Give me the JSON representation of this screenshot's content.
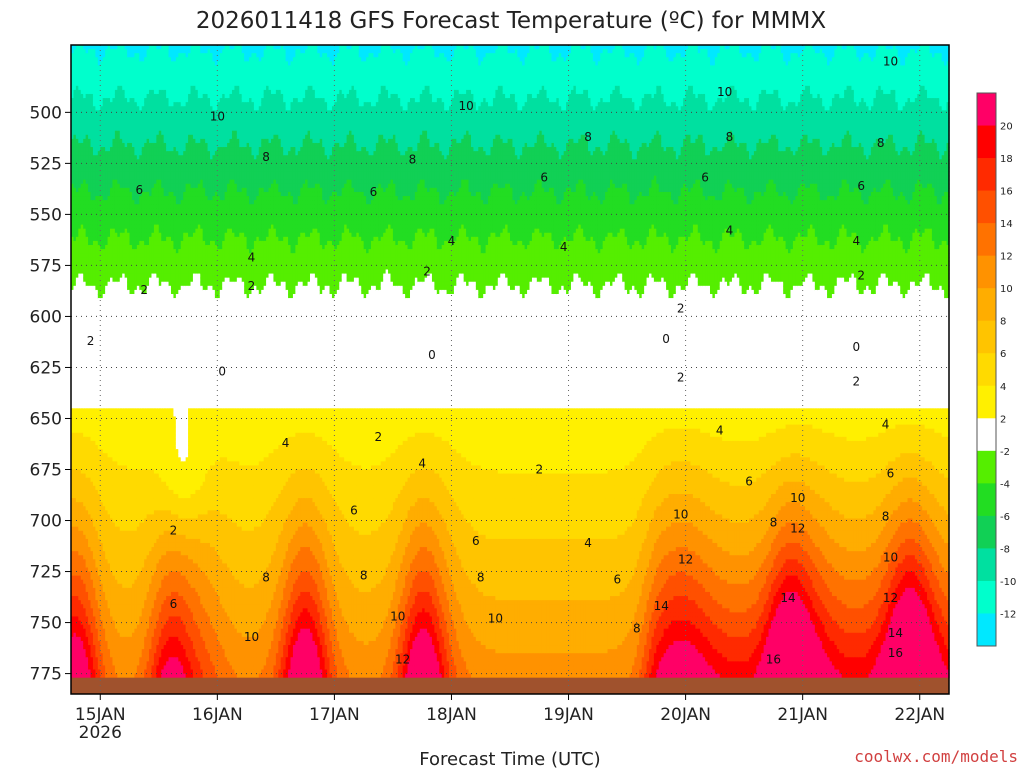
{
  "chart_data": {
    "type": "heatmap",
    "title": "2026011418 GFS Forecast Temperature (ºC) for MMMX",
    "xlabel": "Forecast Time (UTC)",
    "ylabel": "",
    "credit": "coolwx.com/models",
    "y_axis": {
      "unit": "hPa",
      "ylim": [
        785,
        467
      ],
      "ticks": [
        500,
        525,
        550,
        575,
        600,
        625,
        650,
        675,
        700,
        725,
        750,
        775
      ],
      "tick_labels": [
        "500",
        "525",
        "550",
        "575",
        "600",
        "625",
        "650",
        "675",
        "700",
        "725",
        "750",
        "775"
      ]
    },
    "x_axis": {
      "unit": "hours since 2026-01-14 18Z",
      "xlim": [
        0,
        180
      ],
      "ticks": [
        6,
        30,
        54,
        78,
        102,
        126,
        150,
        174
      ],
      "tick_labels": [
        "15JAN",
        "16JAN",
        "17JAN",
        "18JAN",
        "19JAN",
        "20JAN",
        "21JAN",
        "22JAN"
      ],
      "year_label": "2026"
    },
    "grid": true,
    "surface_pressure_hPa": 777,
    "contour_levels": [
      -12,
      -10,
      -8,
      -6,
      -4,
      -2,
      0,
      2,
      4,
      6,
      8,
      10,
      12,
      14,
      16,
      18,
      20
    ],
    "colorbar": {
      "tick_labels": [
        "20",
        "18",
        "16",
        "14",
        "12",
        "10",
        "8",
        "6",
        "4",
        "2",
        "-2",
        "-4",
        "-6",
        "-8",
        "-10",
        "-12"
      ],
      "bands": [
        {
          "lo": 20,
          "hi": 22,
          "color": "#ff0066"
        },
        {
          "lo": 18,
          "hi": 20,
          "color": "#ff0000"
        },
        {
          "lo": 16,
          "hi": 18,
          "color": "#ff2a00"
        },
        {
          "lo": 14,
          "hi": 16,
          "color": "#ff5000"
        },
        {
          "lo": 12,
          "hi": 14,
          "color": "#ff7200"
        },
        {
          "lo": 10,
          "hi": 12,
          "color": "#ff9200"
        },
        {
          "lo": 8,
          "hi": 10,
          "color": "#ffad00"
        },
        {
          "lo": 6,
          "hi": 8,
          "color": "#ffc400"
        },
        {
          "lo": 4,
          "hi": 6,
          "color": "#ffda00"
        },
        {
          "lo": 2,
          "hi": 4,
          "color": "#fff000"
        },
        {
          "lo": -2,
          "hi": 2,
          "color": "#ffffff"
        },
        {
          "lo": -4,
          "hi": -2,
          "color": "#55ee00"
        },
        {
          "lo": -6,
          "hi": -4,
          "color": "#22dd22"
        },
        {
          "lo": -8,
          "hi": -6,
          "color": "#11d055"
        },
        {
          "lo": -10,
          "hi": -8,
          "color": "#00e0a0"
        },
        {
          "lo": -12,
          "hi": -10,
          "color": "#00ffcc"
        },
        {
          "lo": -14,
          "hi": -12,
          "color": "#00e8ff"
        }
      ]
    },
    "contour_labels": [
      {
        "t": 4,
        "p": 612,
        "text": "2"
      },
      {
        "t": 15,
        "p": 587,
        "text": "2"
      },
      {
        "t": 37,
        "p": 585,
        "text": "2"
      },
      {
        "t": 73,
        "p": 578,
        "text": "2"
      },
      {
        "t": 125,
        "p": 596,
        "text": "2"
      },
      {
        "t": 162,
        "p": 580,
        "text": "2"
      },
      {
        "t": 14,
        "p": 538,
        "text": "6"
      },
      {
        "t": 37,
        "p": 571,
        "text": "4"
      },
      {
        "t": 78,
        "p": 563,
        "text": "4"
      },
      {
        "t": 101,
        "p": 566,
        "text": "4"
      },
      {
        "t": 135,
        "p": 558,
        "text": "4"
      },
      {
        "t": 161,
        "p": 563,
        "text": "4"
      },
      {
        "t": 40,
        "p": 522,
        "text": "8"
      },
      {
        "t": 62,
        "p": 539,
        "text": "6"
      },
      {
        "t": 70,
        "p": 523,
        "text": "8"
      },
      {
        "t": 97,
        "p": 532,
        "text": "6"
      },
      {
        "t": 130,
        "p": 532,
        "text": "6"
      },
      {
        "t": 162,
        "p": 536,
        "text": "6"
      },
      {
        "t": 30,
        "p": 502,
        "text": "10"
      },
      {
        "t": 81,
        "p": 497,
        "text": "10"
      },
      {
        "t": 106,
        "p": 512,
        "text": "8"
      },
      {
        "t": 135,
        "p": 512,
        "text": "8"
      },
      {
        "t": 134,
        "p": 490,
        "text": "10"
      },
      {
        "t": 166,
        "p": 515,
        "text": "8"
      },
      {
        "t": 168,
        "p": 475,
        "text": "10"
      },
      {
        "t": 31,
        "p": 627,
        "text": "0"
      },
      {
        "t": 74,
        "p": 619,
        "text": "0"
      },
      {
        "t": 122,
        "p": 611,
        "text": "0"
      },
      {
        "t": 161,
        "p": 615,
        "text": "0"
      },
      {
        "t": 21,
        "p": 705,
        "text": "2"
      },
      {
        "t": 63,
        "p": 659,
        "text": "2"
      },
      {
        "t": 96,
        "p": 675,
        "text": "2"
      },
      {
        "t": 125,
        "p": 630,
        "text": "2"
      },
      {
        "t": 161,
        "p": 632,
        "text": "2"
      },
      {
        "t": 44,
        "p": 662,
        "text": "4"
      },
      {
        "t": 72,
        "p": 672,
        "text": "4"
      },
      {
        "t": 106,
        "p": 711,
        "text": "4"
      },
      {
        "t": 133,
        "p": 656,
        "text": "4"
      },
      {
        "t": 167,
        "p": 653,
        "text": "4"
      },
      {
        "t": 21,
        "p": 741,
        "text": "6"
      },
      {
        "t": 58,
        "p": 695,
        "text": "6"
      },
      {
        "t": 83,
        "p": 710,
        "text": "6"
      },
      {
        "t": 112,
        "p": 729,
        "text": "6"
      },
      {
        "t": 139,
        "p": 681,
        "text": "6"
      },
      {
        "t": 168,
        "p": 677,
        "text": "6"
      },
      {
        "t": 40,
        "p": 728,
        "text": "8"
      },
      {
        "t": 60,
        "p": 727,
        "text": "8"
      },
      {
        "t": 84,
        "p": 728,
        "text": "8"
      },
      {
        "t": 116,
        "p": 753,
        "text": "8"
      },
      {
        "t": 144,
        "p": 701,
        "text": "8"
      },
      {
        "t": 167,
        "p": 698,
        "text": "8"
      },
      {
        "t": 37,
        "p": 757,
        "text": "10"
      },
      {
        "t": 67,
        "p": 747,
        "text": "10"
      },
      {
        "t": 87,
        "p": 748,
        "text": "10"
      },
      {
        "t": 125,
        "p": 697,
        "text": "10"
      },
      {
        "t": 149,
        "p": 689,
        "text": "10"
      },
      {
        "t": 168,
        "p": 718,
        "text": "10"
      },
      {
        "t": 68,
        "p": 768,
        "text": "12"
      },
      {
        "t": 126,
        "p": 719,
        "text": "12"
      },
      {
        "t": 149,
        "p": 704,
        "text": "12"
      },
      {
        "t": 168,
        "p": 738,
        "text": "12"
      },
      {
        "t": 121,
        "p": 742,
        "text": "14"
      },
      {
        "t": 147,
        "p": 738,
        "text": "14"
      },
      {
        "t": 169,
        "p": 755,
        "text": "14"
      },
      {
        "t": 144,
        "p": 768,
        "text": "16"
      },
      {
        "t": 169,
        "p": 765,
        "text": "16"
      }
    ]
  }
}
